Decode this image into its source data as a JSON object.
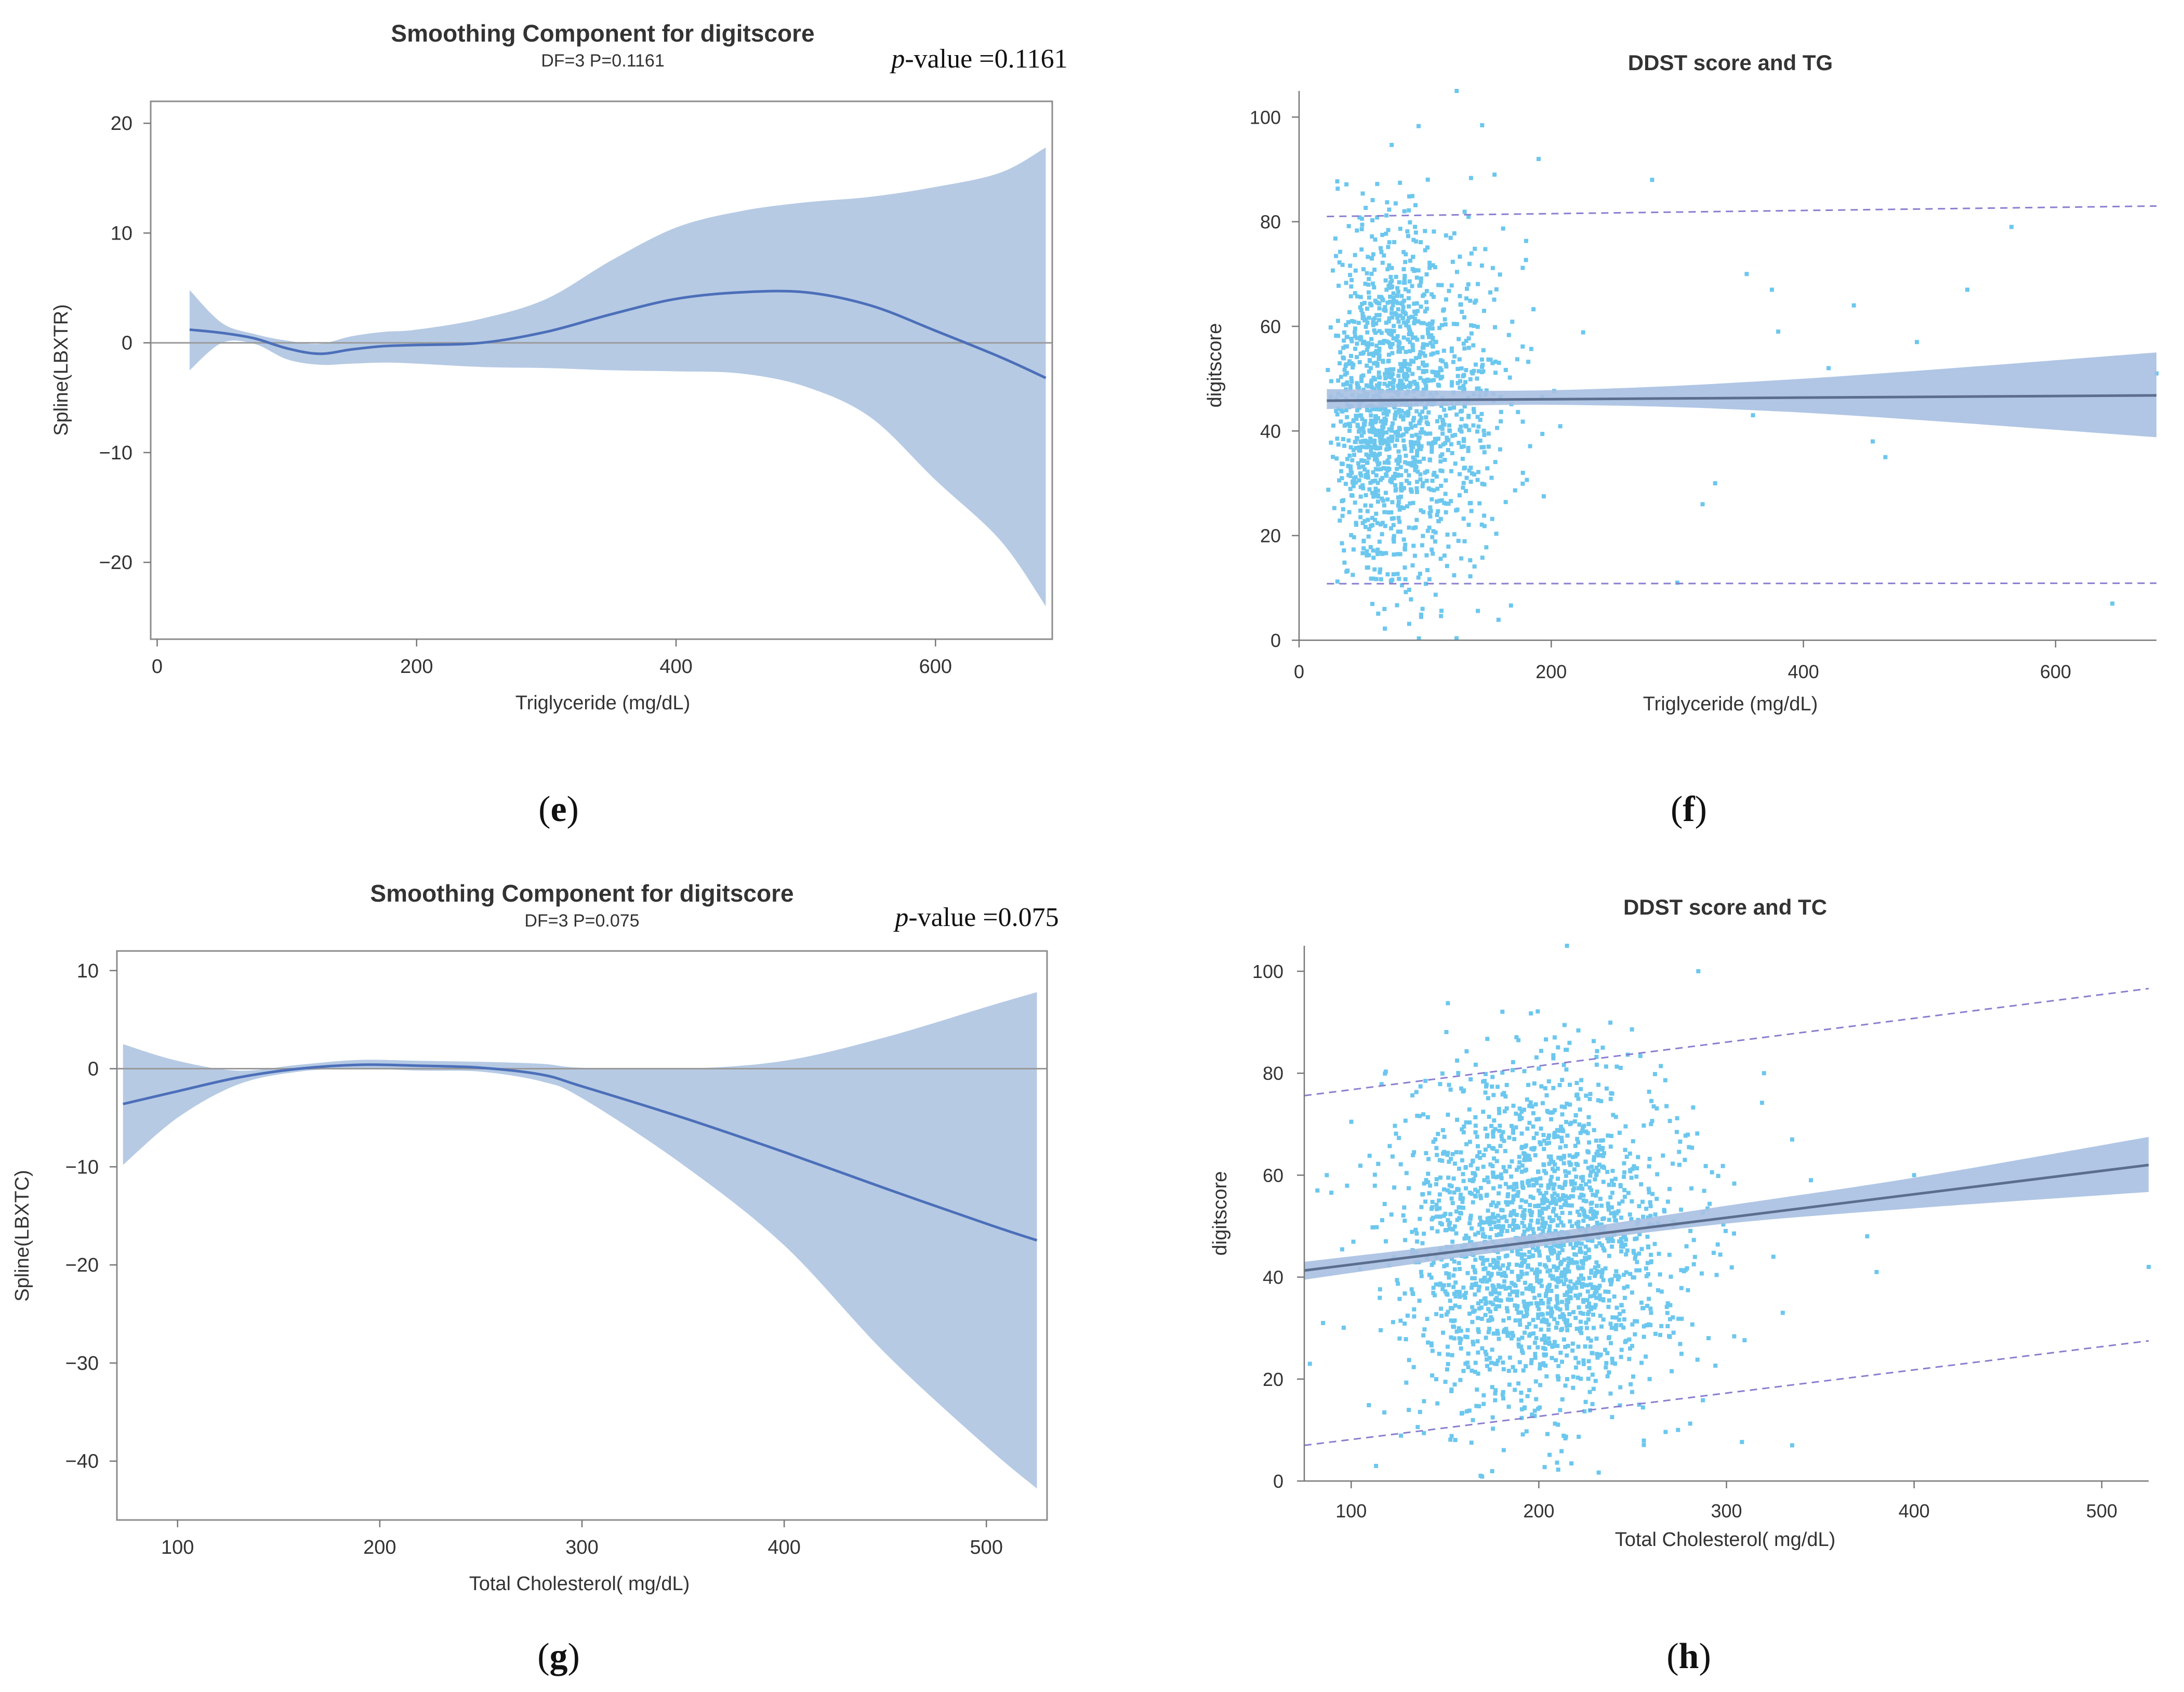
{
  "colors": {
    "band": "#b6cae4",
    "curve": "#4c6fb9",
    "zero_line": "#9a9a9a",
    "frame": "#8c8c8c",
    "points": "#6cc7ee",
    "fit_band": "#a8c0e2",
    "fit_line": "#5c6e8e",
    "pred_line": "#8a7ed0"
  },
  "chart_data": [
    {
      "id": "e",
      "type": "area",
      "panel_label": "(e)",
      "title": "Smoothing Component for digitscore",
      "subtitle": "DF=3   P=0.1161",
      "annotation": "p-value =0.1161",
      "annotation_italic": "p",
      "annotation_rest": "-value =0.1161",
      "xlabel": "Triglyceride (mg/dL)",
      "ylabel": "Spline(LBXTR)",
      "xlim": [
        -5,
        690
      ],
      "ylim": [
        -27,
        22
      ],
      "xticks": [
        0,
        200,
        400,
        600
      ],
      "yticks": [
        -20,
        -10,
        0,
        10,
        20
      ],
      "reference_line_y": 0,
      "x": [
        25,
        50,
        75,
        100,
        125,
        150,
        175,
        200,
        250,
        300,
        350,
        400,
        450,
        500,
        550,
        600,
        650,
        685
      ],
      "fit": [
        1.2,
        0.9,
        0.4,
        -0.5,
        -1.0,
        -0.6,
        -0.3,
        -0.2,
        0.0,
        1.0,
        2.6,
        4.0,
        4.6,
        4.6,
        3.4,
        1.1,
        -1.3,
        -3.2
      ],
      "upper": [
        4.8,
        1.8,
        0.8,
        0.2,
        -0.1,
        0.6,
        1.0,
        1.2,
        2.2,
        4.0,
        7.5,
        10.5,
        12.0,
        12.8,
        13.3,
        14.2,
        15.5,
        17.8
      ],
      "lower": [
        -2.5,
        0.0,
        -0.1,
        -1.5,
        -2.0,
        -1.9,
        -1.8,
        -1.9,
        -2.2,
        -2.3,
        -2.5,
        -2.6,
        -2.8,
        -4.0,
        -6.8,
        -12.5,
        -18.0,
        -24.0
      ]
    },
    {
      "id": "f",
      "type": "scatter",
      "panel_label": "(f)",
      "title": "DDST score and TG",
      "xlabel": "Triglyceride (mg/dL)",
      "ylabel": "digitscore",
      "xlim": [
        0,
        680
      ],
      "ylim": [
        0,
        105
      ],
      "xticks": [
        0,
        200,
        400,
        600
      ],
      "yticks": [
        0,
        20,
        40,
        60,
        80,
        100
      ],
      "point_count": 1500,
      "point_x_center": 95,
      "point_x_spread": 45,
      "point_x_min": 22,
      "point_x_max": 320,
      "point_y_center": 45,
      "point_y_spread": 17,
      "fit_line": {
        "x": [
          22,
          680
        ],
        "y": [
          45.8,
          46.8
        ]
      },
      "fit_band": {
        "x": [
          22,
          200,
          400,
          680
        ],
        "upper": [
          48.0,
          47.8,
          50.0,
          55.0
        ],
        "lower": [
          44.2,
          45.0,
          43.5,
          38.8
        ]
      },
      "prediction_upper": {
        "x": [
          22,
          680
        ],
        "y": [
          81,
          83
        ]
      },
      "prediction_lower": {
        "x": [
          22,
          680
        ],
        "y": [
          10.8,
          10.9
        ]
      },
      "outliers": [
        {
          "x": 125,
          "y": 105
        },
        {
          "x": 155,
          "y": 89
        },
        {
          "x": 190,
          "y": 92
        },
        {
          "x": 280,
          "y": 88
        },
        {
          "x": 355,
          "y": 70
        },
        {
          "x": 375,
          "y": 67
        },
        {
          "x": 380,
          "y": 59
        },
        {
          "x": 420,
          "y": 52
        },
        {
          "x": 440,
          "y": 64
        },
        {
          "x": 455,
          "y": 38
        },
        {
          "x": 465,
          "y": 35
        },
        {
          "x": 490,
          "y": 57
        },
        {
          "x": 530,
          "y": 67
        },
        {
          "x": 565,
          "y": 79
        },
        {
          "x": 645,
          "y": 7
        },
        {
          "x": 330,
          "y": 30
        },
        {
          "x": 320,
          "y": 26
        },
        {
          "x": 360,
          "y": 43
        },
        {
          "x": 300,
          "y": 11
        },
        {
          "x": 680,
          "y": 51
        }
      ]
    },
    {
      "id": "g",
      "type": "area",
      "panel_label": "(g)",
      "title": "Smoothing Component for digitscore",
      "subtitle": "DF=3   P=0.075",
      "annotation": "p-value =0.075",
      "annotation_italic": "p",
      "annotation_rest": "-value =0.075",
      "xlabel": "Total Cholesterol( mg/dL)",
      "ylabel": "Spline(LBXTC)",
      "xlim": [
        70,
        530
      ],
      "ylim": [
        -46,
        12
      ],
      "xticks": [
        100,
        200,
        300,
        400,
        500
      ],
      "yticks": [
        -40,
        -30,
        -20,
        -10,
        0,
        10
      ],
      "reference_line_y": 0,
      "x": [
        73,
        100,
        130,
        160,
        190,
        220,
        250,
        280,
        300,
        350,
        400,
        450,
        500,
        525
      ],
      "fit": [
        -3.6,
        -2.3,
        -0.9,
        0.0,
        0.4,
        0.3,
        0.1,
        -0.6,
        -1.8,
        -5.0,
        -8.5,
        -12.2,
        -15.8,
        -17.5
      ],
      "upper": [
        2.5,
        0.8,
        -0.2,
        0.4,
        0.9,
        0.8,
        0.7,
        0.5,
        0.1,
        0.0,
        0.8,
        3.2,
        6.3,
        7.8
      ],
      "lower": [
        -9.8,
        -5.0,
        -1.6,
        -0.3,
        0.0,
        -0.2,
        -0.3,
        -1.3,
        -3.0,
        -9.8,
        -18.0,
        -29.0,
        -38.5,
        -42.8
      ]
    },
    {
      "id": "h",
      "type": "scatter",
      "panel_label": "(h)",
      "title": "DDST score and TC",
      "xlabel": "Total Cholesterol( mg/dL)",
      "ylabel": "digitscore",
      "xlim": [
        75,
        525
      ],
      "ylim": [
        0,
        105
      ],
      "xticks": [
        100,
        200,
        300,
        400,
        500
      ],
      "yticks": [
        0,
        20,
        40,
        60,
        80,
        100
      ],
      "point_count": 2000,
      "point_x_center": 198,
      "point_x_spread": 38,
      "point_x_min": 80,
      "point_x_max": 330,
      "point_y_center": 47,
      "point_y_spread": 17,
      "fit_line": {
        "x": [
          75,
          525
        ],
        "y": [
          41.3,
          62.0
        ]
      },
      "fit_band": {
        "x": [
          75,
          200,
          300,
          400,
          525
        ],
        "upper": [
          43.0,
          48.5,
          54.0,
          59.5,
          67.5
        ],
        "lower": [
          39.5,
          46.0,
          50.5,
          53.5,
          56.7
        ]
      },
      "prediction_upper": {
        "x": [
          75,
          525
        ],
        "y": [
          75.6,
          96.6
        ]
      },
      "prediction_lower": {
        "x": [
          75,
          525
        ],
        "y": [
          7.0,
          27.5
        ]
      },
      "outliers": [
        {
          "x": 82,
          "y": 57
        },
        {
          "x": 78,
          "y": 23
        },
        {
          "x": 87,
          "y": 60
        },
        {
          "x": 85,
          "y": 31
        },
        {
          "x": 335,
          "y": 67
        },
        {
          "x": 345,
          "y": 59
        },
        {
          "x": 375,
          "y": 48
        },
        {
          "x": 380,
          "y": 41
        },
        {
          "x": 400,
          "y": 60
        },
        {
          "x": 335,
          "y": 7
        },
        {
          "x": 325,
          "y": 44
        },
        {
          "x": 330,
          "y": 33
        },
        {
          "x": 525,
          "y": 42
        },
        {
          "x": 285,
          "y": 100
        },
        {
          "x": 215,
          "y": 105
        },
        {
          "x": 320,
          "y": 80
        }
      ]
    }
  ]
}
